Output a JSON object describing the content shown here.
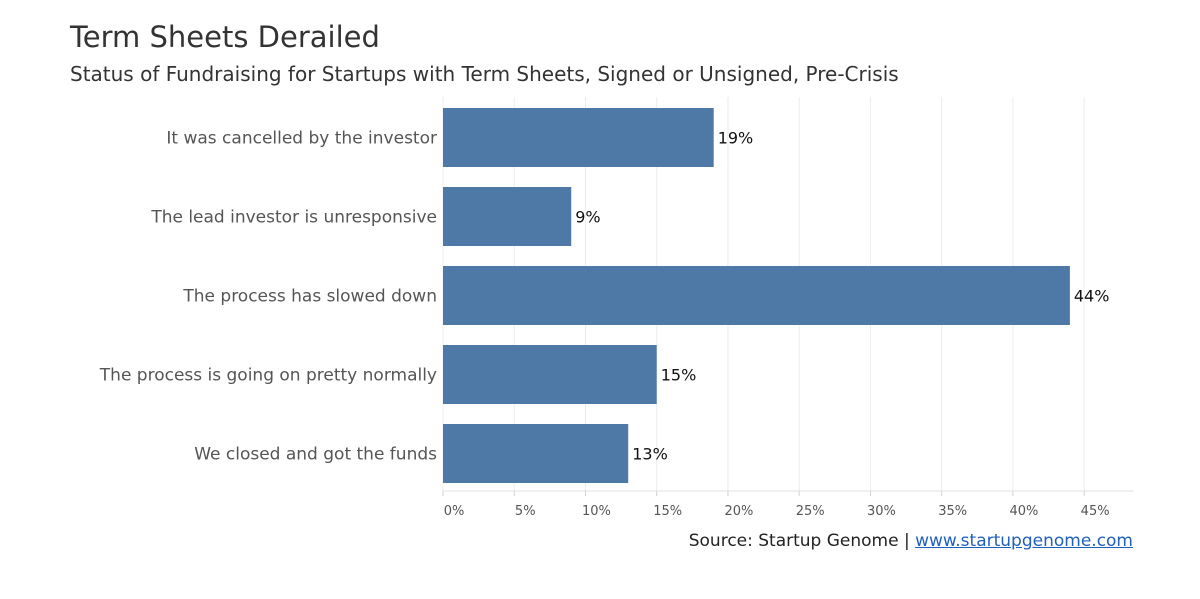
{
  "chart_data": {
    "type": "bar",
    "orientation": "horizontal",
    "title": "Term Sheets Derailed",
    "subtitle": "Status of Fundraising for Startups with Term Sheets, Signed or Unsigned, Pre-Crisis",
    "categories": [
      "It was cancelled by the investor",
      "The lead investor is unresponsive",
      "The process has slowed down",
      "The process is going on pretty normally",
      "We closed and got the funds"
    ],
    "values": [
      19,
      9,
      44,
      15,
      13
    ],
    "data_labels": [
      "19%",
      "9%",
      "44%",
      "15%",
      "13%"
    ],
    "xlim": [
      0,
      48.5
    ],
    "xticks": [
      0,
      5,
      10,
      15,
      20,
      25,
      30,
      35,
      40,
      45
    ],
    "xtick_labels": [
      "0%",
      "5%",
      "10%",
      "15%",
      "20%",
      "25%",
      "30%",
      "35%",
      "40%",
      "45%"
    ],
    "grid": "vertical",
    "bar_color": "#4e78a6"
  },
  "source": {
    "prefix": "Source: Startup Genome | ",
    "link_text": "www.startupgenome.com"
  }
}
